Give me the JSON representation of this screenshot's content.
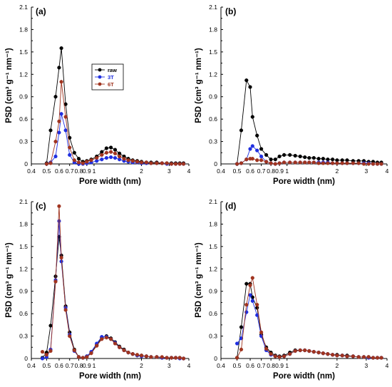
{
  "chart_data": [
    {
      "type": "line",
      "panel_label": "(a)",
      "xlabel": "Pore width (nm)",
      "ylabel": "PSD (cm³ g⁻¹ nm⁻¹)",
      "x_scale": "log",
      "xlim": [
        0.4,
        4
      ],
      "ylim": [
        0,
        2.1
      ],
      "xticks": [
        0.4,
        0.5,
        0.6,
        0.7,
        0.8,
        0.9,
        1,
        2,
        3,
        4
      ],
      "xtick_labels": [
        "0.4",
        "0.5",
        "0.6",
        "0.7",
        "0.8",
        "0.9",
        "1",
        "2",
        "3",
        "4"
      ],
      "yticks": [
        0,
        0.3,
        0.6,
        0.9,
        1.2,
        1.5,
        1.8,
        2.1
      ],
      "ytick_labels": [
        "0",
        "0.3",
        "0.6",
        "0.9",
        "1.2",
        "1.5",
        "1.8",
        "2.1"
      ],
      "legend": {
        "position": "upper-center",
        "entries": [
          "raw",
          "3T",
          "6T"
        ]
      },
      "series": [
        {
          "name": "raw",
          "color": "#000000",
          "x": [
            0.5,
            0.53,
            0.57,
            0.6,
            0.62,
            0.66,
            0.7,
            0.75,
            0.8,
            0.85,
            0.9,
            0.96,
            1.04,
            1.12,
            1.2,
            1.28,
            1.36,
            1.45,
            1.55,
            1.65,
            1.76,
            1.88,
            2.0,
            2.15,
            2.3,
            2.5,
            2.7,
            2.9,
            3.1,
            3.3,
            3.5,
            3.7
          ],
          "y": [
            0.01,
            0.45,
            0.9,
            1.29,
            1.55,
            0.8,
            0.35,
            0.15,
            0.07,
            0.03,
            0.04,
            0.06,
            0.1,
            0.16,
            0.21,
            0.22,
            0.19,
            0.14,
            0.1,
            0.07,
            0.05,
            0.04,
            0.03,
            0.02,
            0.02,
            0.02,
            0.01,
            0.01,
            0.01,
            0.01,
            0.01,
            0.01
          ]
        },
        {
          "name": "3T",
          "color": "#1f2fe0",
          "x": [
            0.5,
            0.53,
            0.57,
            0.6,
            0.62,
            0.66,
            0.7,
            0.75,
            0.8,
            0.85,
            0.9,
            0.96,
            1.04,
            1.12,
            1.2,
            1.28,
            1.36,
            1.45,
            1.55,
            1.65,
            1.76,
            1.88,
            2.0,
            2.15,
            2.3,
            2.5,
            2.7,
            2.9,
            3.1,
            3.3,
            3.5,
            3.7
          ],
          "y": [
            0.0,
            0.02,
            0.1,
            0.42,
            0.67,
            0.45,
            0.12,
            0.02,
            0.0,
            0.0,
            0.01,
            0.02,
            0.04,
            0.06,
            0.08,
            0.09,
            0.08,
            0.06,
            0.04,
            0.03,
            0.02,
            0.02,
            0.01,
            0.01,
            0.01,
            0.01,
            0.01,
            0.0,
            0.0,
            0.0,
            0.0,
            0.0
          ]
        },
        {
          "name": "6T",
          "color": "#a0341f",
          "x": [
            0.5,
            0.53,
            0.57,
            0.6,
            0.62,
            0.66,
            0.7,
            0.75,
            0.8,
            0.85,
            0.9,
            0.96,
            1.04,
            1.12,
            1.2,
            1.28,
            1.36,
            1.45,
            1.55,
            1.65,
            1.76,
            1.88,
            2.0,
            2.15,
            2.3,
            2.5,
            2.7,
            2.9,
            3.1,
            3.3,
            3.5,
            3.7
          ],
          "y": [
            0.0,
            0.01,
            0.3,
            0.57,
            1.1,
            0.63,
            0.22,
            0.05,
            0.02,
            0.01,
            0.03,
            0.05,
            0.08,
            0.12,
            0.15,
            0.16,
            0.14,
            0.1,
            0.07,
            0.05,
            0.04,
            0.03,
            0.02,
            0.02,
            0.01,
            0.01,
            0.01,
            0.01,
            0.0,
            0.0,
            0.0,
            0.0
          ]
        }
      ]
    },
    {
      "type": "line",
      "panel_label": "(b)",
      "xlabel": "Pore width (nm)",
      "ylabel": "PSD (cm³ g⁻¹ nm⁻¹)",
      "x_scale": "log",
      "xlim": [
        0.4,
        4
      ],
      "ylim": [
        0,
        2.1
      ],
      "xticks": [
        0.4,
        0.5,
        0.6,
        0.7,
        0.8,
        0.9,
        1,
        2,
        3,
        4
      ],
      "xtick_labels": [
        "0.4",
        "0.5",
        "0.6",
        "0.7",
        "0.8",
        "0.9",
        "1",
        "2",
        "3",
        "4"
      ],
      "yticks": [
        0,
        0.3,
        0.6,
        0.9,
        1.2,
        1.5,
        1.8,
        2.1
      ],
      "ytick_labels": [
        "0",
        "0.3",
        "0.6",
        "0.9",
        "1.2",
        "1.5",
        "1.8",
        "2.1"
      ],
      "series": [
        {
          "name": "raw",
          "color": "#000000",
          "x": [
            0.5,
            0.53,
            0.57,
            0.6,
            0.62,
            0.66,
            0.7,
            0.75,
            0.8,
            0.85,
            0.9,
            0.96,
            1.04,
            1.12,
            1.2,
            1.28,
            1.36,
            1.45,
            1.55,
            1.65,
            1.76,
            1.88,
            2.0,
            2.15,
            2.3,
            2.5,
            2.7,
            2.9,
            3.1,
            3.3,
            3.5,
            3.7
          ],
          "y": [
            0.0,
            0.45,
            1.12,
            1.03,
            0.63,
            0.38,
            0.2,
            0.12,
            0.06,
            0.06,
            0.1,
            0.12,
            0.12,
            0.11,
            0.1,
            0.09,
            0.08,
            0.08,
            0.07,
            0.07,
            0.06,
            0.06,
            0.05,
            0.05,
            0.05,
            0.04,
            0.04,
            0.04,
            0.03,
            0.03,
            0.02,
            0.02
          ]
        },
        {
          "name": "3T",
          "color": "#1f2fe0",
          "x": [
            0.5,
            0.53,
            0.57,
            0.6,
            0.62,
            0.66,
            0.7,
            0.75,
            0.8,
            0.85,
            0.9,
            0.96,
            1.04,
            1.12,
            1.2,
            1.28,
            1.36,
            1.45,
            1.55,
            1.65,
            1.76,
            1.88,
            2.0,
            2.15,
            2.3,
            2.5,
            2.7,
            2.9,
            3.1,
            3.3,
            3.5,
            3.7
          ],
          "y": [
            0.0,
            0.01,
            0.06,
            0.2,
            0.24,
            0.18,
            0.1,
            0.03,
            0.01,
            0.0,
            0.01,
            0.02,
            0.02,
            0.02,
            0.02,
            0.02,
            0.02,
            0.02,
            0.02,
            0.02,
            0.02,
            0.01,
            0.01,
            0.01,
            0.01,
            0.01,
            0.01,
            0.01,
            0.01,
            0.0,
            0.0,
            0.0
          ]
        },
        {
          "name": "6T",
          "color": "#a0341f",
          "x": [
            0.5,
            0.53,
            0.57,
            0.6,
            0.62,
            0.66,
            0.7,
            0.75,
            0.8,
            0.85,
            0.9,
            0.96,
            1.04,
            1.12,
            1.2,
            1.28,
            1.36,
            1.45,
            1.55,
            1.65,
            1.76,
            1.88,
            2.0,
            2.15,
            2.3,
            2.5,
            2.7,
            2.9,
            3.1,
            3.3,
            3.5,
            3.7
          ],
          "y": [
            0.0,
            0.01,
            0.06,
            0.07,
            0.07,
            0.05,
            0.05,
            0.03,
            0.01,
            0.0,
            0.01,
            0.02,
            0.02,
            0.02,
            0.02,
            0.02,
            0.02,
            0.02,
            0.01,
            0.01,
            0.01,
            0.01,
            0.01,
            0.01,
            0.01,
            0.01,
            0.01,
            0.0,
            0.0,
            0.0,
            0.0,
            0.0
          ]
        }
      ]
    },
    {
      "type": "line",
      "panel_label": "(c)",
      "xlabel": "Pore width (nm)",
      "ylabel": "PSD (cm³ g⁻¹ nm⁻¹)",
      "x_scale": "log",
      "xlim": [
        0.4,
        4
      ],
      "ylim": [
        0,
        2.1
      ],
      "xticks": [
        0.4,
        0.5,
        0.6,
        0.7,
        0.8,
        0.9,
        1,
        2,
        3,
        4
      ],
      "xtick_labels": [
        "0.4",
        "0.5",
        "0.6",
        "0.7",
        "0.8",
        "0.9",
        "1",
        "2",
        "3",
        "4"
      ],
      "yticks": [
        0,
        0.3,
        0.6,
        0.9,
        1.2,
        1.5,
        1.8,
        2.1
      ],
      "ytick_labels": [
        "0",
        "0.3",
        "0.6",
        "0.9",
        "1.2",
        "1.5",
        "1.8",
        "2.1"
      ],
      "series": [
        {
          "name": "raw",
          "color": "#000000",
          "x": [
            0.47,
            0.5,
            0.53,
            0.57,
            0.6,
            0.62,
            0.66,
            0.7,
            0.75,
            0.8,
            0.85,
            0.9,
            0.96,
            1.04,
            1.12,
            1.2,
            1.28,
            1.36,
            1.45,
            1.55,
            1.65,
            1.76,
            1.88,
            2.0,
            2.15,
            2.3,
            2.5,
            2.7,
            2.9,
            3.1,
            3.3,
            3.5,
            3.7
          ],
          "y": [
            0.01,
            0.08,
            0.44,
            1.1,
            1.63,
            1.38,
            0.7,
            0.35,
            0.12,
            0.02,
            0.01,
            0.03,
            0.08,
            0.18,
            0.28,
            0.3,
            0.27,
            0.22,
            0.16,
            0.12,
            0.08,
            0.06,
            0.04,
            0.04,
            0.03,
            0.02,
            0.02,
            0.01,
            0.01,
            0.01,
            0.01,
            0.01,
            0.0
          ]
        },
        {
          "name": "3T",
          "color": "#1f2fe0",
          "x": [
            0.47,
            0.5,
            0.53,
            0.57,
            0.6,
            0.62,
            0.66,
            0.7,
            0.75,
            0.8,
            0.85,
            0.9,
            0.96,
            1.04,
            1.12,
            1.2,
            1.28,
            1.36,
            1.45,
            1.55,
            1.65,
            1.76,
            1.88,
            2.0,
            2.15,
            2.3,
            2.5,
            2.7,
            2.9,
            3.1,
            3.3,
            3.5,
            3.7
          ],
          "y": [
            0.0,
            0.02,
            0.12,
            1.05,
            1.84,
            1.3,
            0.68,
            0.32,
            0.1,
            0.02,
            0.01,
            0.03,
            0.09,
            0.2,
            0.29,
            0.29,
            0.26,
            0.21,
            0.15,
            0.11,
            0.08,
            0.06,
            0.04,
            0.03,
            0.03,
            0.02,
            0.02,
            0.01,
            0.01,
            0.01,
            0.01,
            0.0,
            0.0
          ]
        },
        {
          "name": "6T",
          "color": "#a0341f",
          "x": [
            0.47,
            0.5,
            0.53,
            0.57,
            0.6,
            0.62,
            0.66,
            0.7,
            0.75,
            0.8,
            0.85,
            0.9,
            0.96,
            1.04,
            1.12,
            1.2,
            1.28,
            1.36,
            1.45,
            1.55,
            1.65,
            1.76,
            1.88,
            2.0,
            2.15,
            2.3,
            2.5,
            2.7,
            2.9,
            3.1,
            3.3,
            3.5,
            3.7
          ],
          "y": [
            0.09,
            0.05,
            0.1,
            1.03,
            2.04,
            1.35,
            0.65,
            0.3,
            0.11,
            0.02,
            0.01,
            0.02,
            0.07,
            0.17,
            0.26,
            0.28,
            0.26,
            0.2,
            0.15,
            0.11,
            0.08,
            0.06,
            0.05,
            0.04,
            0.03,
            0.02,
            0.02,
            0.02,
            0.01,
            0.01,
            0.01,
            0.01,
            0.0
          ]
        }
      ]
    },
    {
      "type": "line",
      "panel_label": "(d)",
      "xlabel": "Pore width (nm)",
      "ylabel": "PSD (cm³ g⁻¹ nm⁻¹)",
      "x_scale": "log",
      "xlim": [
        0.4,
        4
      ],
      "ylim": [
        0,
        2.1
      ],
      "xticks": [
        0.4,
        0.5,
        0.6,
        0.7,
        0.8,
        0.9,
        1,
        2,
        3,
        4
      ],
      "xtick_labels": [
        "0.4",
        "0.5",
        "0.6",
        "0.7",
        "0.8",
        "0.9",
        "1",
        "2",
        "3",
        "4"
      ],
      "yticks": [
        0,
        0.3,
        0.6,
        0.9,
        1.2,
        1.5,
        1.8,
        2.1
      ],
      "ytick_labels": [
        "0",
        "0.3",
        "0.6",
        "0.9",
        "1.2",
        "1.5",
        "1.8",
        "2.1"
      ],
      "series": [
        {
          "name": "raw",
          "color": "#000000",
          "x": [
            0.5,
            0.53,
            0.57,
            0.6,
            0.62,
            0.66,
            0.7,
            0.75,
            0.8,
            0.85,
            0.9,
            0.96,
            1.04,
            1.12,
            1.2,
            1.28,
            1.36,
            1.45,
            1.55,
            1.65,
            1.76,
            1.88,
            2.0,
            2.15,
            2.3,
            2.5,
            2.7,
            2.9,
            3.1,
            3.3,
            3.5,
            3.7
          ],
          "y": [
            0.01,
            0.42,
            1.0,
            1.0,
            0.82,
            0.68,
            0.32,
            0.15,
            0.08,
            0.04,
            0.03,
            0.04,
            0.08,
            0.11,
            0.11,
            0.11,
            0.1,
            0.09,
            0.08,
            0.07,
            0.06,
            0.05,
            0.05,
            0.04,
            0.04,
            0.03,
            0.02,
            0.02,
            0.02,
            0.01,
            0.01,
            0.01
          ]
        },
        {
          "name": "3T",
          "color": "#1f2fe0",
          "x": [
            0.5,
            0.53,
            0.57,
            0.6,
            0.62,
            0.66,
            0.7,
            0.75,
            0.8,
            0.85,
            0.9,
            0.96,
            1.04,
            1.12,
            1.2,
            1.28,
            1.36,
            1.45,
            1.55,
            1.65,
            1.76,
            1.88,
            2.0,
            2.15,
            2.3,
            2.5,
            2.7,
            2.9,
            3.1,
            3.3,
            3.5,
            3.7
          ],
          "y": [
            0.2,
            0.27,
            0.62,
            0.85,
            0.77,
            0.58,
            0.3,
            0.11,
            0.05,
            0.03,
            0.02,
            0.03,
            0.06,
            0.1,
            0.11,
            0.11,
            0.1,
            0.09,
            0.08,
            0.07,
            0.06,
            0.05,
            0.04,
            0.04,
            0.03,
            0.03,
            0.02,
            0.02,
            0.01,
            0.01,
            0.01,
            0.01
          ]
        },
        {
          "name": "6T",
          "color": "#a0341f",
          "x": [
            0.5,
            0.53,
            0.57,
            0.6,
            0.62,
            0.66,
            0.7,
            0.75,
            0.8,
            0.85,
            0.9,
            0.96,
            1.04,
            1.12,
            1.2,
            1.28,
            1.36,
            1.45,
            1.55,
            1.65,
            1.76,
            1.88,
            2.0,
            2.15,
            2.3,
            2.5,
            2.7,
            2.9,
            3.1,
            3.3,
            3.5,
            3.7
          ],
          "y": [
            0.01,
            0.12,
            0.72,
            0.98,
            1.08,
            0.72,
            0.35,
            0.13,
            0.06,
            0.03,
            0.02,
            0.03,
            0.06,
            0.1,
            0.11,
            0.11,
            0.1,
            0.09,
            0.08,
            0.07,
            0.06,
            0.05,
            0.04,
            0.04,
            0.03,
            0.03,
            0.02,
            0.02,
            0.02,
            0.01,
            0.01,
            0.01
          ]
        }
      ]
    }
  ]
}
